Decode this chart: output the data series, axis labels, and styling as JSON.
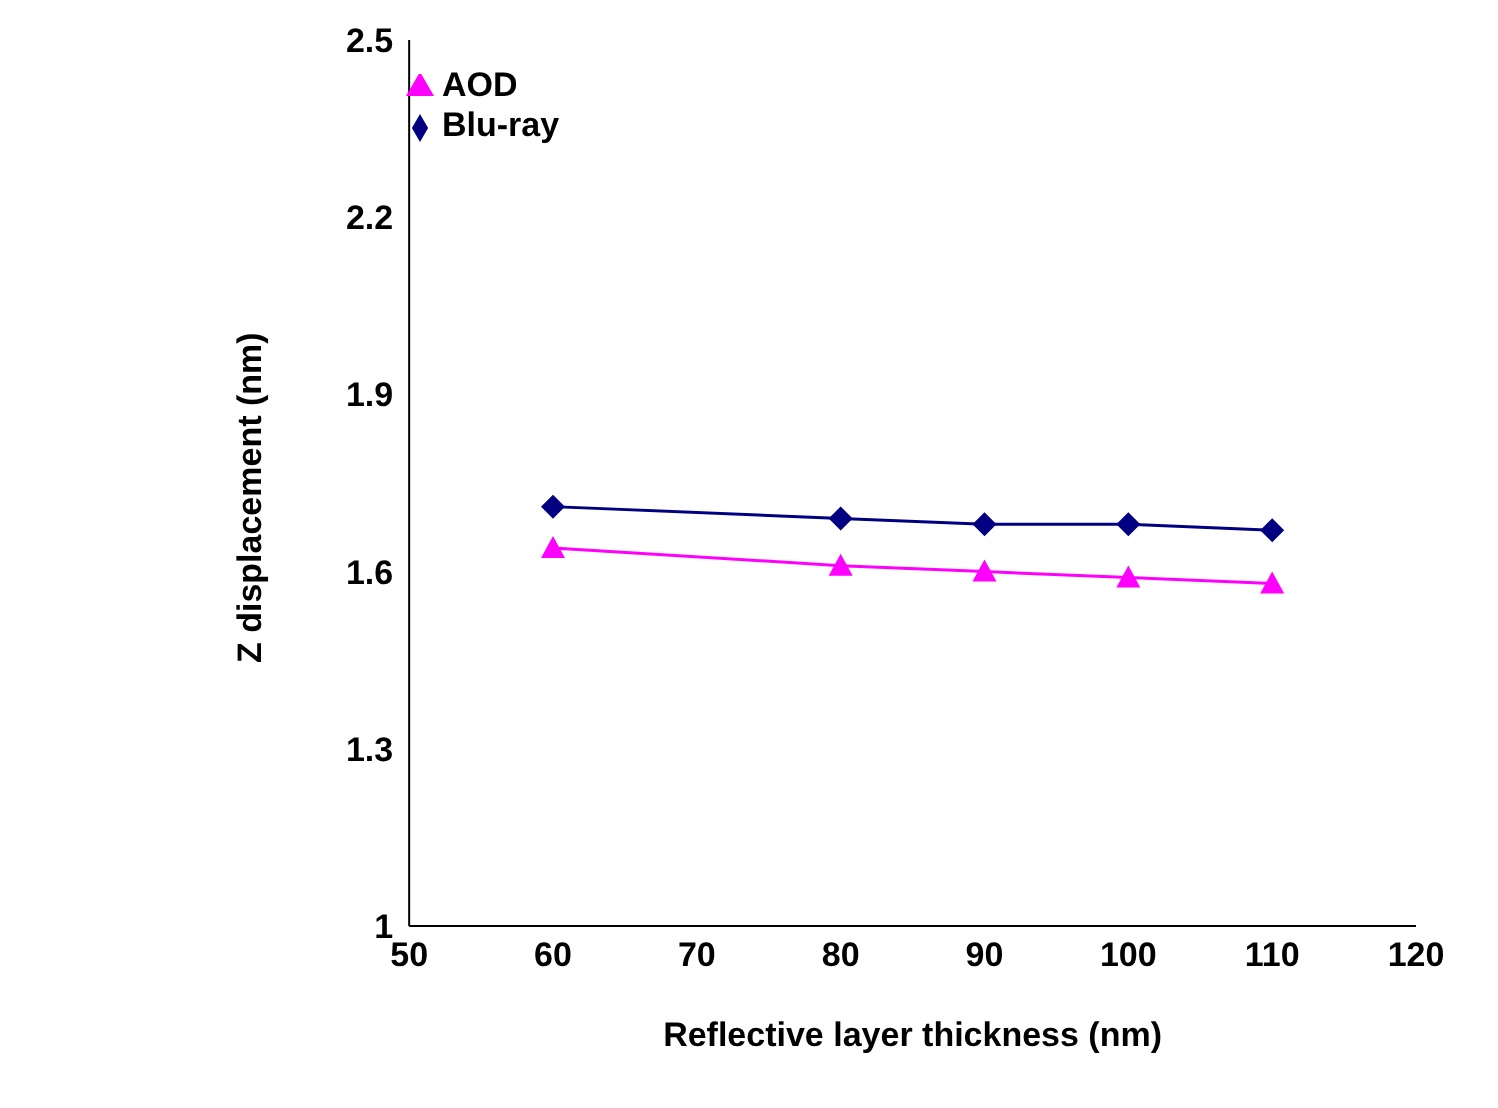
{
  "chart_data": {
    "type": "line",
    "xlabel": "Reflective layer thickness (nm)",
    "ylabel": "Z displacement (nm)",
    "x": [
      60,
      80,
      90,
      100,
      110
    ],
    "series": [
      {
        "name": "Blu-ray",
        "color": "#000080",
        "marker": "diamond",
        "values": [
          1.71,
          1.69,
          1.68,
          1.68,
          1.67
        ]
      },
      {
        "name": "AOD",
        "color": "#ff00ff",
        "marker": "triangle",
        "values": [
          1.64,
          1.61,
          1.6,
          1.59,
          1.58
        ]
      }
    ],
    "xlim": [
      50,
      120
    ],
    "xticks": [
      50,
      60,
      70,
      80,
      90,
      100,
      110,
      120
    ],
    "ylim": [
      1,
      2.5
    ],
    "yticks": [
      1,
      1.3,
      1.6,
      1.9,
      2.2,
      2.5
    ],
    "grid": false,
    "legend": "top left",
    "line_style": "solid"
  }
}
